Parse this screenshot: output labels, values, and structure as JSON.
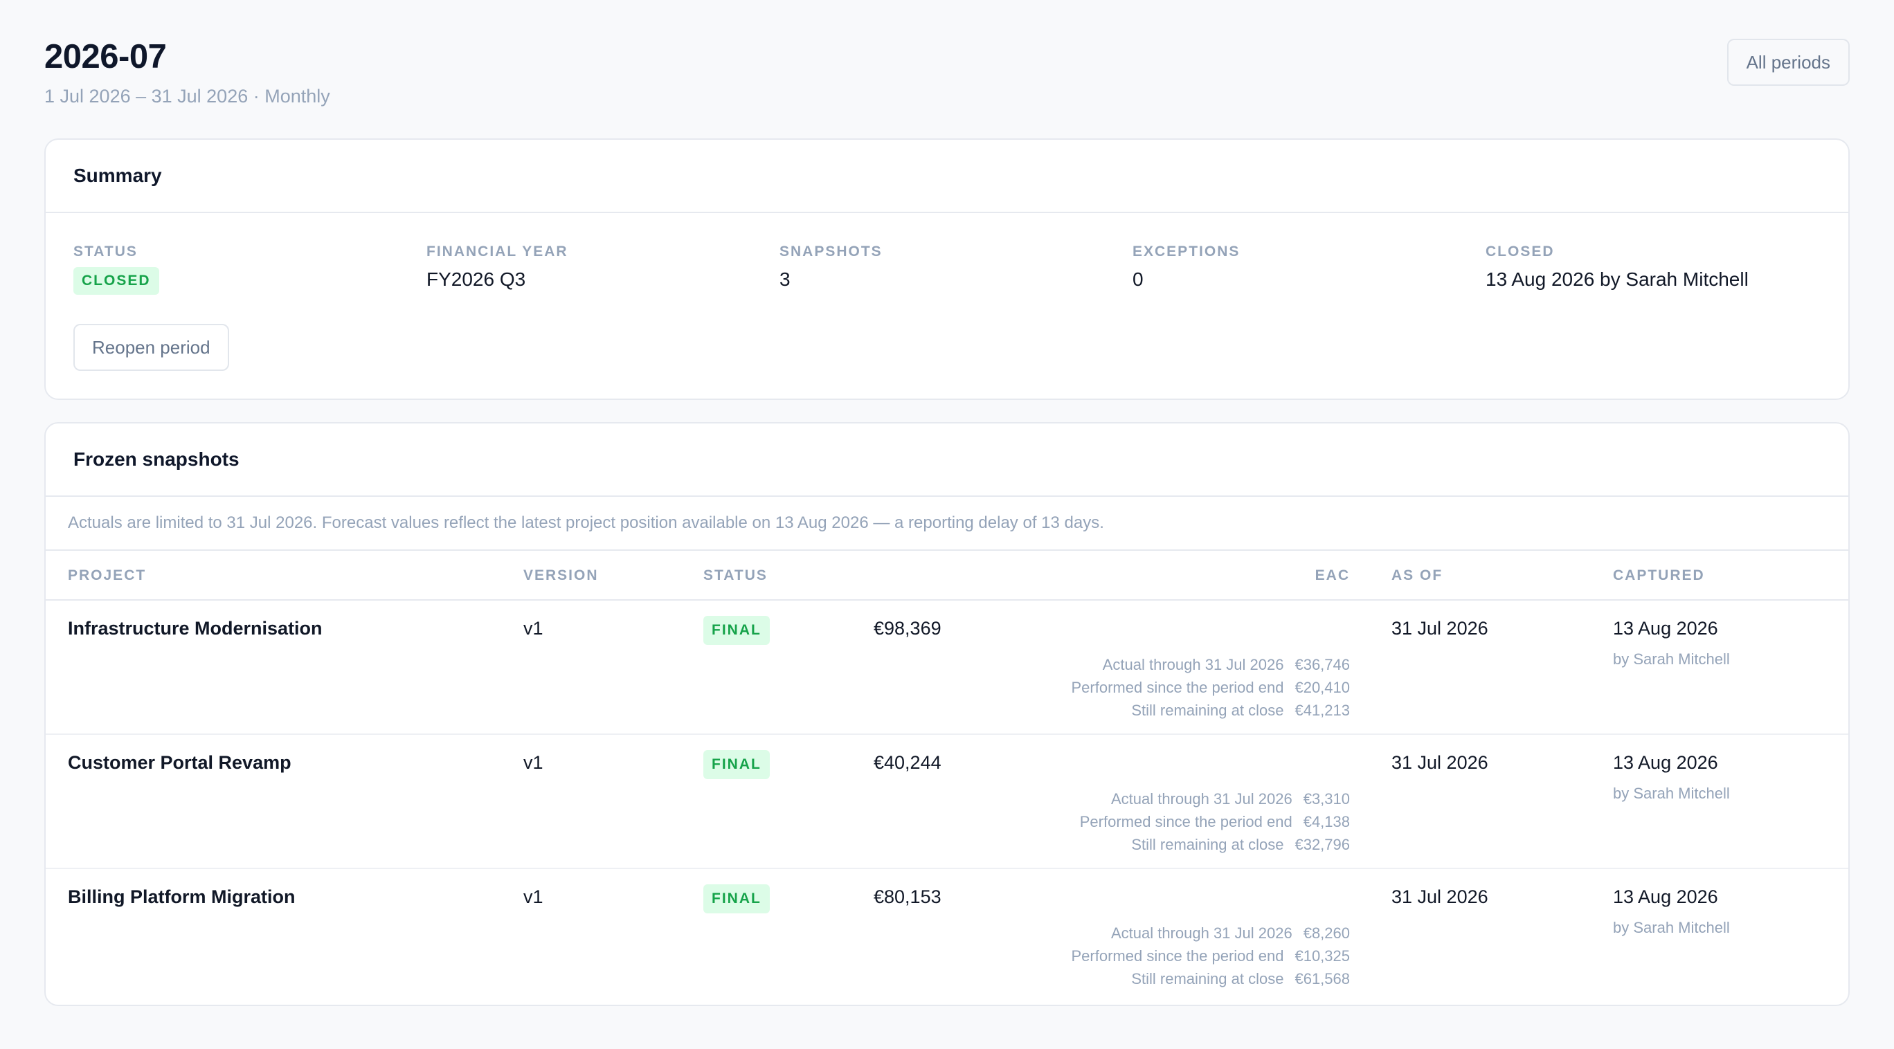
{
  "header": {
    "title": "2026-07",
    "subtitle": "1 Jul 2026 – 31 Jul 2026 · Monthly",
    "all_periods_label": "All periods"
  },
  "summary": {
    "heading": "Summary",
    "status_label": "STATUS",
    "status_value": "CLOSED",
    "fy_label": "FINANCIAL YEAR",
    "fy_value": "FY2026 Q3",
    "snapshots_label": "SNAPSHOTS",
    "snapshots_value": "3",
    "exceptions_label": "EXCEPTIONS",
    "exceptions_value": "0",
    "closed_label": "CLOSED",
    "closed_value": "13 Aug 2026 by Sarah Mitchell",
    "reopen_label": "Reopen period"
  },
  "snapshots": {
    "heading": "Frozen snapshots",
    "note": "Actuals are limited to 31 Jul 2026. Forecast values reflect the latest project position available on 13 Aug 2026 — a reporting delay of 13 days.",
    "columns": {
      "project": "PROJECT",
      "version": "VERSION",
      "status": "STATUS",
      "eac": "EAC",
      "as_of": "AS OF",
      "captured": "CAPTURED"
    },
    "rows": [
      {
        "project": "Infrastructure Modernisation",
        "version": "v1",
        "status": "FINAL",
        "eac": "€98,369",
        "actual_label": "Actual through 31 Jul 2026",
        "actual": "€36,746",
        "performed_label": "Performed since the period end",
        "performed": "€20,410",
        "remaining_label": "Still remaining at close",
        "remaining": "€41,213",
        "as_of": "31 Jul 2026",
        "captured": "13 Aug 2026",
        "captured_by": "by Sarah Mitchell"
      },
      {
        "project": "Customer Portal Revamp",
        "version": "v1",
        "status": "FINAL",
        "eac": "€40,244",
        "actual_label": "Actual through 31 Jul 2026",
        "actual": "€3,310",
        "performed_label": "Performed since the period end",
        "performed": "€4,138",
        "remaining_label": "Still remaining at close",
        "remaining": "€32,796",
        "as_of": "31 Jul 2026",
        "captured": "13 Aug 2026",
        "captured_by": "by Sarah Mitchell"
      },
      {
        "project": "Billing Platform Migration",
        "version": "v1",
        "status": "FINAL",
        "eac": "€80,153",
        "actual_label": "Actual through 31 Jul 2026",
        "actual": "€8,260",
        "performed_label": "Performed since the period end",
        "performed": "€10,325",
        "remaining_label": "Still remaining at close",
        "remaining": "€61,568",
        "as_of": "31 Jul 2026",
        "captured": "13 Aug 2026",
        "captured_by": "by Sarah Mitchell"
      }
    ]
  },
  "colors": {
    "accent_green": "#16a34a",
    "badge_bg": "#dcfce7",
    "muted_text": "#94a3b8"
  }
}
